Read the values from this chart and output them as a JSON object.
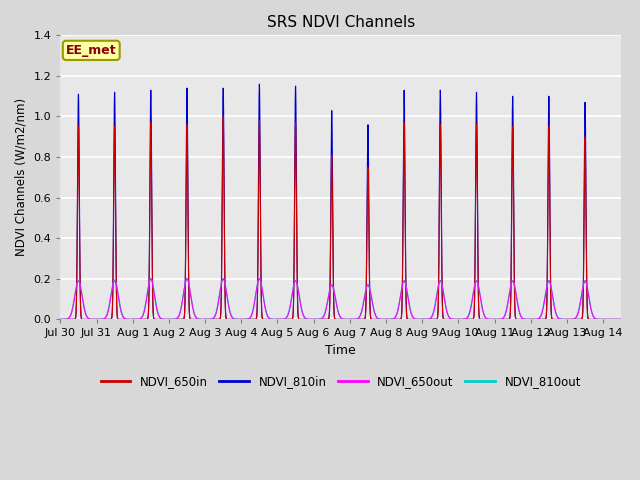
{
  "title": "SRS NDVI Channels",
  "xlabel": "Time",
  "ylabel": "NDVI Channels (W/m2/nm)",
  "ylim": [
    0,
    1.4
  ],
  "colors": {
    "NDVI_650in": "#cc0000",
    "NDVI_810in": "#0000cc",
    "NDVI_650out": "#ff00ff",
    "NDVI_810out": "#00cccc"
  },
  "bg_color": "#d8d8d8",
  "plot_bg": "#e8e8e8",
  "tick_labels": [
    "Jul 30",
    "Jul 31",
    "Aug 1",
    "Aug 2",
    "Aug 3",
    "Aug 4",
    "Aug 5",
    "Aug 6",
    "Aug 7",
    "Aug 8",
    "Aug 9",
    "Aug 10",
    "Aug 11",
    "Aug 12",
    "Aug 13",
    "Aug 14"
  ],
  "tick_positions": [
    0,
    1,
    2,
    3,
    4,
    5,
    6,
    7,
    8,
    9,
    10,
    11,
    12,
    13,
    14,
    15
  ],
  "peak_810in": [
    1.11,
    1.12,
    1.13,
    1.14,
    1.14,
    1.16,
    1.15,
    1.03,
    0.96,
    1.13,
    1.13,
    1.12,
    1.1,
    1.1,
    1.07
  ],
  "peak_650in": [
    0.95,
    0.95,
    0.97,
    0.96,
    1.0,
    0.98,
    0.97,
    0.81,
    0.75,
    0.97,
    0.96,
    0.96,
    0.95,
    0.95,
    0.9
  ],
  "peak_650out": [
    0.19,
    0.19,
    0.2,
    0.2,
    0.2,
    0.2,
    0.19,
    0.17,
    0.17,
    0.19,
    0.19,
    0.19,
    0.19,
    0.19,
    0.19
  ],
  "peak_810out": [
    0.19,
    0.195,
    0.2,
    0.2,
    0.2,
    0.2,
    0.19,
    0.17,
    0.17,
    0.19,
    0.19,
    0.19,
    0.19,
    0.19,
    0.19
  ],
  "annotation": "EE_met",
  "figsize": [
    6.4,
    4.8
  ],
  "dpi": 100
}
